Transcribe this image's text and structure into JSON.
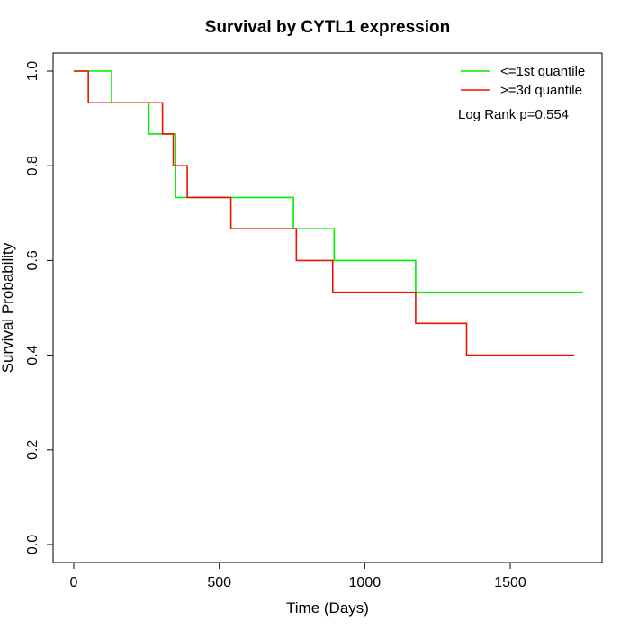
{
  "chart_data": {
    "type": "line",
    "subtype": "kaplan-meier step",
    "title": "Survival by CYTL1 expression",
    "xlabel": "Time (Days)",
    "ylabel": "Survival Probability",
    "xlim": [
      0,
      1800
    ],
    "ylim": [
      0,
      1.0
    ],
    "x_ticks": [
      0,
      500,
      1000,
      1500
    ],
    "x_tick_labels": [
      "0",
      "500",
      "1000",
      "1500"
    ],
    "y_ticks": [
      0,
      0.2,
      0.4,
      0.6,
      0.8,
      1.0
    ],
    "y_tick_labels": [
      "0.0",
      "0.2",
      "0.4",
      "0.6",
      "0.8",
      "1.0"
    ],
    "grid": false,
    "legend_position": "top-right",
    "annotation": "Log Rank p=0.554",
    "series": [
      {
        "name": "<=1st quantile",
        "color": "#00ee00",
        "steps": [
          {
            "x": 0,
            "y": 1.0
          },
          {
            "x": 130,
            "y": 0.933
          },
          {
            "x": 258,
            "y": 0.867
          },
          {
            "x": 350,
            "y": 0.733
          },
          {
            "x": 755,
            "y": 0.667
          },
          {
            "x": 895,
            "y": 0.6
          },
          {
            "x": 1175,
            "y": 0.533
          }
        ],
        "end_x": 1750
      },
      {
        "name": ">=3d quantile",
        "color": "#ee1100",
        "steps": [
          {
            "x": 0,
            "y": 1.0
          },
          {
            "x": 50,
            "y": 0.933
          },
          {
            "x": 305,
            "y": 0.867
          },
          {
            "x": 342,
            "y": 0.8
          },
          {
            "x": 390,
            "y": 0.733
          },
          {
            "x": 540,
            "y": 0.667
          },
          {
            "x": 765,
            "y": 0.6
          },
          {
            "x": 890,
            "y": 0.533
          },
          {
            "x": 1175,
            "y": 0.467
          },
          {
            "x": 1350,
            "y": 0.4
          }
        ],
        "end_x": 1720
      }
    ]
  }
}
